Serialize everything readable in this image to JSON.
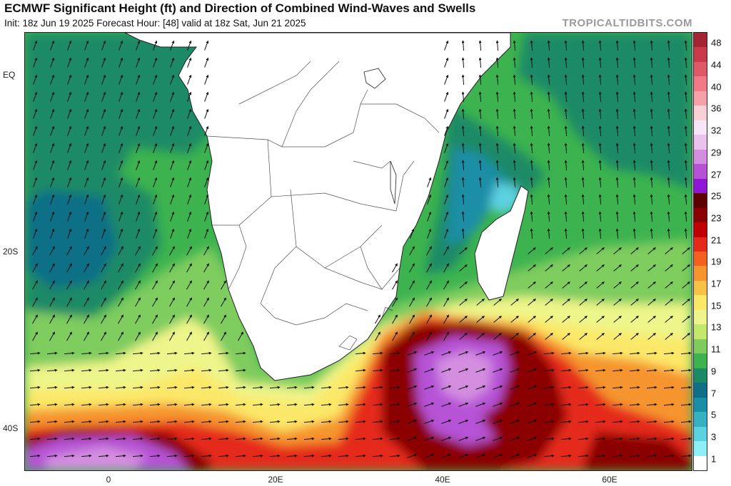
{
  "header": {
    "title": "ECMWF Significant Height (ft) and Direction of Combined Wind-Waves and Swells",
    "subtitle": "Init: 18z Jun 19 2025   Forecast Hour: [48]   valid at 18z Sat, Jun 21 2025",
    "brand": "TROPICALTIDBITS.COM"
  },
  "map": {
    "lat_labels": [
      "EQ",
      "20S",
      "40S"
    ],
    "lon_labels": [
      "0",
      "20E",
      "40E",
      "60E"
    ],
    "land_color": "#ffffff",
    "border_color": "#333333"
  },
  "colorbar": {
    "labels": [
      "48",
      "44",
      "40",
      "36",
      "32",
      "29",
      "27",
      "25",
      "23",
      "21",
      "19",
      "17",
      "15",
      "13",
      "11",
      "9",
      "7",
      "5",
      "3",
      "1"
    ],
    "colors": [
      "#a32432",
      "#c93b49",
      "#de5a66",
      "#f07a86",
      "#f6a0aa",
      "#fad0d6",
      "#f6e6f6",
      "#ebc1ee",
      "#d48ee0",
      "#b652d6",
      "#8f16d6",
      "#5c0000",
      "#8b0000",
      "#c10000",
      "#e52a1a",
      "#f2621e",
      "#f6942e",
      "#f7c246",
      "#fbe868",
      "#eef58a",
      "#c2e86c",
      "#7fcc5e",
      "#3db34f",
      "#1d8a66",
      "#0f6f86",
      "#1a8ea6",
      "#36b1c2",
      "#5cd2e0",
      "#8ef0f6",
      "#ffffff"
    ]
  }
}
